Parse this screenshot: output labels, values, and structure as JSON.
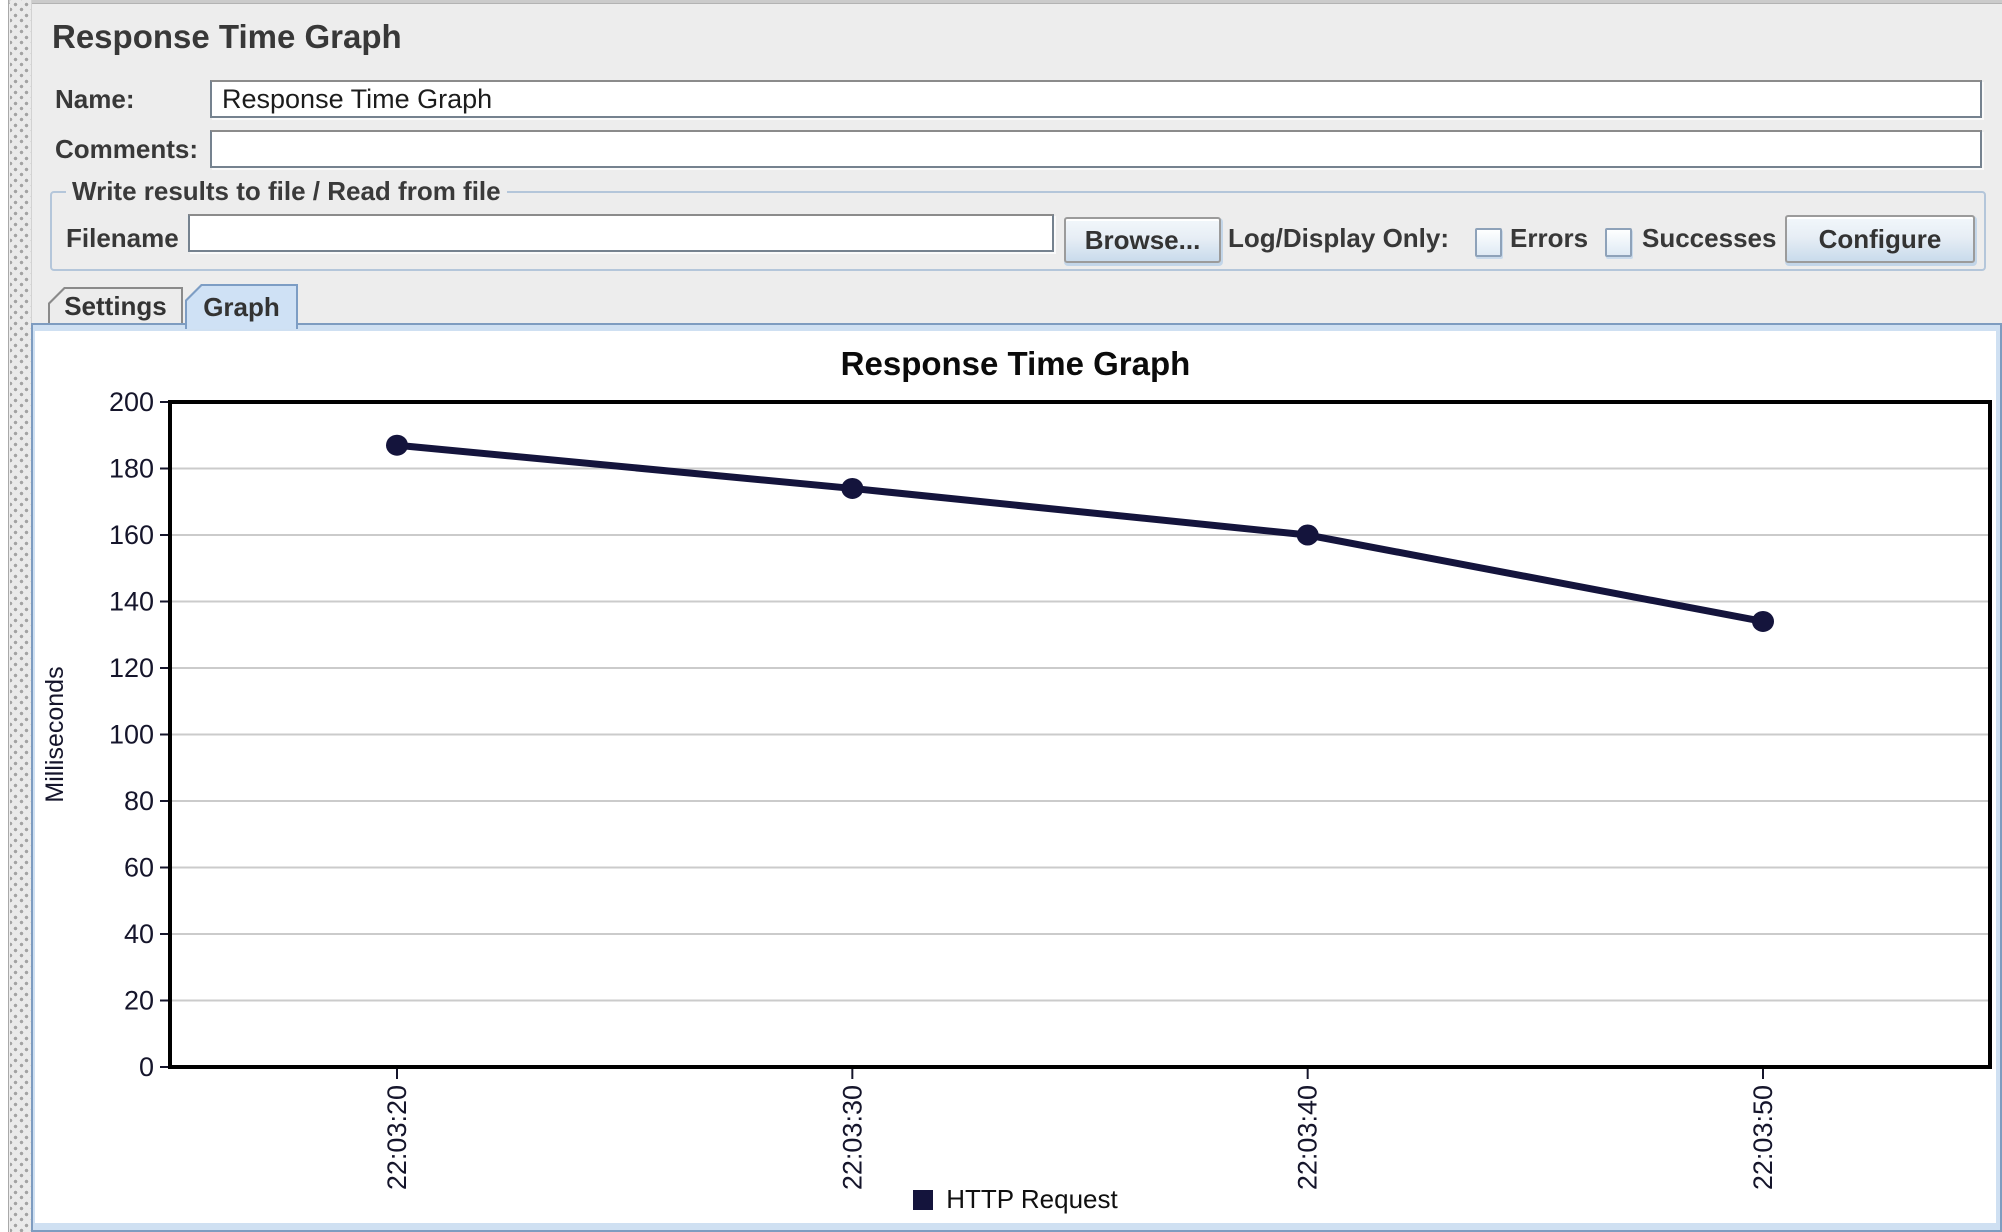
{
  "header": {
    "title": "Response Time Graph",
    "name_label": "Name:",
    "name_value": "Response Time Graph",
    "comments_label": "Comments:",
    "comments_value": ""
  },
  "file_panel": {
    "group_title": "Write results to file / Read from file",
    "filename_label": "Filename",
    "filename_value": "",
    "browse_button": "Browse...",
    "log_display_label": "Log/Display Only:",
    "errors_label": "Errors",
    "errors_checked": false,
    "successes_label": "Successes",
    "successes_checked": false,
    "configure_button": "Configure"
  },
  "tabs": {
    "settings_label": "Settings",
    "graph_label": "Graph",
    "selected": "Graph"
  },
  "chart_data": {
    "type": "line",
    "title": "Response Time Graph",
    "xlabel": "",
    "ylabel": "Milliseconds",
    "ylim": [
      0,
      200
    ],
    "ytick_interval": 20,
    "x": [
      "22:03:20",
      "22:03:30",
      "22:03:40",
      "22:03:50"
    ],
    "series": [
      {
        "name": "HTTP Request",
        "color": "#14143c",
        "values": [
          187,
          174,
          160,
          134
        ]
      }
    ],
    "grid": "horizontal",
    "gridline_color": "#cbcbcb",
    "tick_label_color": "#15152b",
    "plot_border_color": "#000000",
    "legend_position": "bottom"
  }
}
